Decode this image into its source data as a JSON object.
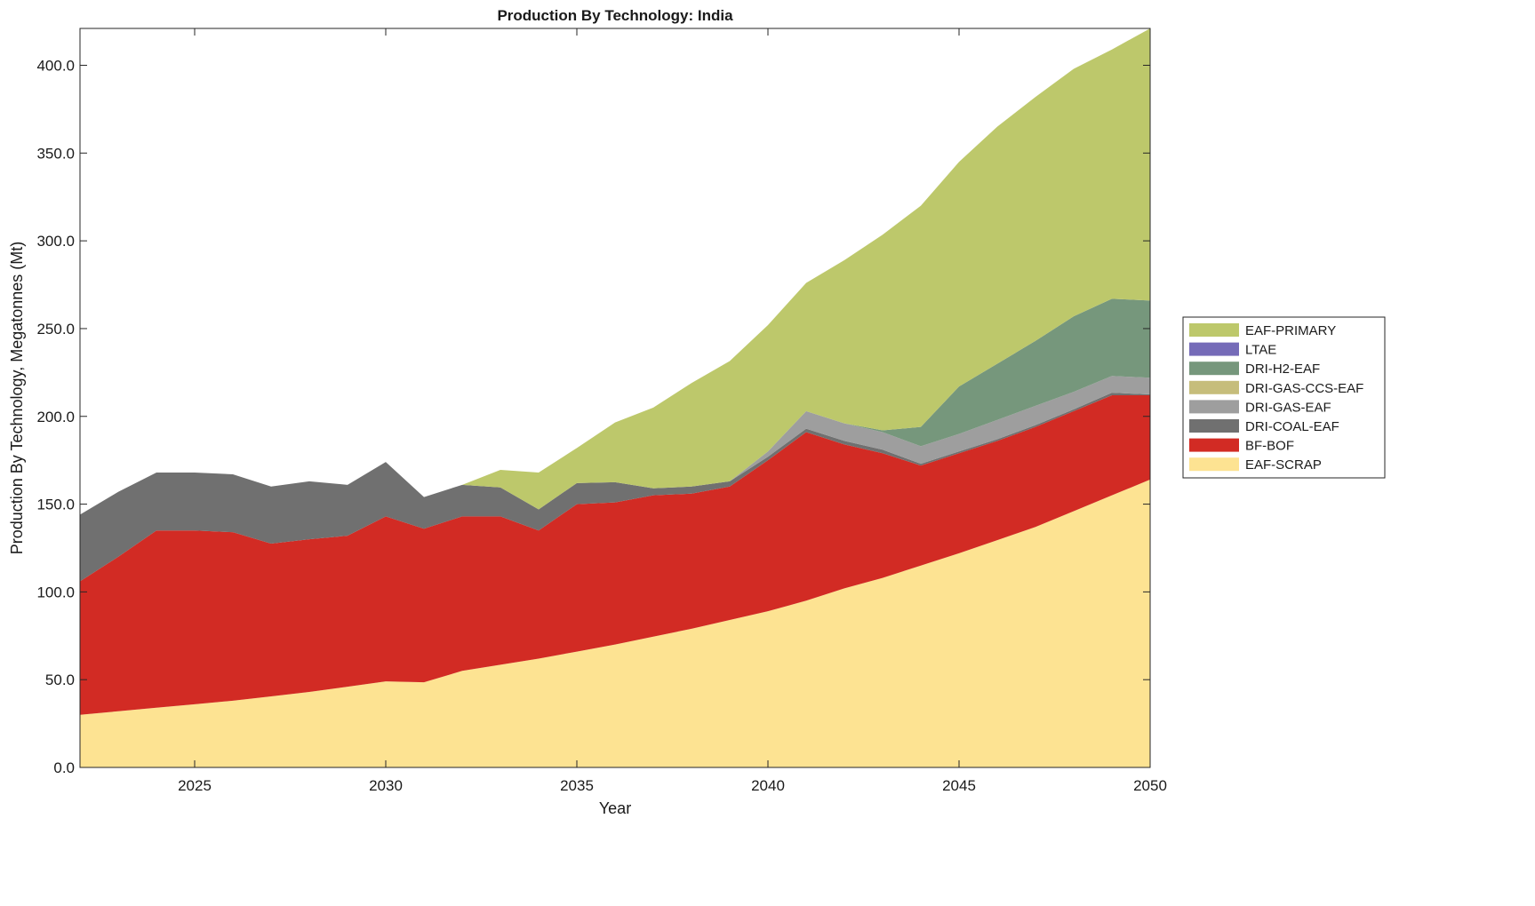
{
  "chart_data": {
    "type": "area",
    "stacked": true,
    "title": "Production By Technology: India",
    "xlabel": "Year",
    "ylabel": "Production By Technology, Megatonnes (Mt)",
    "xlim": [
      2022,
      2050
    ],
    "ylim": [
      0,
      421
    ],
    "xticks": [
      2025,
      2030,
      2035,
      2040,
      2045,
      2050
    ],
    "yticks": [
      "0.0",
      "50.0",
      "100.0",
      "150.0",
      "200.0",
      "250.0",
      "300.0",
      "350.0",
      "400.0"
    ],
    "grid": false,
    "legend_position": "right",
    "x": [
      2022,
      2023,
      2024,
      2025,
      2026,
      2027,
      2028,
      2029,
      2030,
      2031,
      2032,
      2033,
      2034,
      2035,
      2036,
      2037,
      2038,
      2039,
      2040,
      2041,
      2042,
      2043,
      2044,
      2045,
      2046,
      2047,
      2048,
      2049,
      2050
    ],
    "series": [
      {
        "name": "EAF-SCRAP",
        "color": "#fde392",
        "values": [
          30,
          32,
          34,
          36,
          38,
          40.5,
          43,
          46,
          49,
          48.5,
          55,
          58.5,
          62,
          66,
          70,
          74.5,
          79,
          84,
          89,
          95,
          102,
          108,
          115,
          122,
          129.5,
          137,
          146,
          155,
          164
        ]
      },
      {
        "name": "BF-BOF",
        "color": "#d22b24",
        "values": [
          76,
          88,
          101,
          99,
          96,
          87,
          87,
          86,
          94,
          87.5,
          88,
          84.5,
          73,
          84,
          81,
          80.5,
          77,
          76,
          86,
          96,
          82,
          71,
          57,
          57,
          56.5,
          57,
          57,
          57,
          48
        ]
      },
      {
        "name": "DRI-COAL-EAF",
        "color": "#707070",
        "values": [
          38,
          37,
          33,
          33,
          33,
          32.5,
          33,
          29,
          31,
          18,
          18,
          16.5,
          12,
          12,
          11.5,
          4,
          4,
          3,
          2,
          2,
          2,
          2,
          1,
          1,
          1,
          1,
          1,
          1.5,
          0.5
        ]
      },
      {
        "name": "DRI-GAS-EAF",
        "color": "#9e9e9e",
        "values": [
          0,
          0,
          0,
          0,
          0,
          0,
          0,
          0,
          0,
          0,
          0,
          0,
          0,
          0,
          0,
          0,
          0,
          0,
          3,
          10,
          10,
          10,
          10,
          10,
          11,
          11,
          10,
          9.5,
          9.5
        ]
      },
      {
        "name": "DRI-GAS-CCS-EAF",
        "color": "#c6bd7b",
        "values": [
          0,
          0,
          0,
          0,
          0,
          0,
          0,
          0,
          0,
          0,
          0,
          0,
          0,
          0,
          0,
          0,
          0,
          0,
          0,
          0,
          0,
          0,
          0,
          0,
          0,
          0,
          0,
          0,
          0
        ]
      },
      {
        "name": "DRI-H2-EAF",
        "color": "#76977c",
        "values": [
          0,
          0,
          0,
          0,
          0,
          0,
          0,
          0,
          0,
          0,
          0,
          0,
          0,
          0,
          0,
          0,
          0,
          0,
          0,
          0,
          0,
          1,
          11,
          27,
          32,
          37,
          43,
          44,
          44
        ]
      },
      {
        "name": "LTAE",
        "color": "#756bb8",
        "values": [
          0,
          0,
          0,
          0,
          0,
          0,
          0,
          0,
          0,
          0,
          0,
          0,
          0,
          0,
          0,
          0,
          0,
          0,
          0,
          0,
          0,
          0,
          0,
          0,
          0,
          0,
          0,
          0,
          0
        ]
      },
      {
        "name": "EAF-PRIMARY",
        "color": "#bdc86b",
        "values": [
          0,
          0,
          0,
          0,
          0,
          0,
          0,
          0,
          0,
          0,
          0,
          10,
          21,
          20,
          34,
          46,
          59,
          68.5,
          72,
          73,
          93,
          111.5,
          126,
          128,
          135,
          139,
          141,
          142,
          155
        ]
      }
    ],
    "legend_order": [
      "EAF-PRIMARY",
      "LTAE",
      "DRI-H2-EAF",
      "DRI-GAS-CCS-EAF",
      "DRI-GAS-EAF",
      "DRI-COAL-EAF",
      "BF-BOF",
      "EAF-SCRAP"
    ]
  }
}
